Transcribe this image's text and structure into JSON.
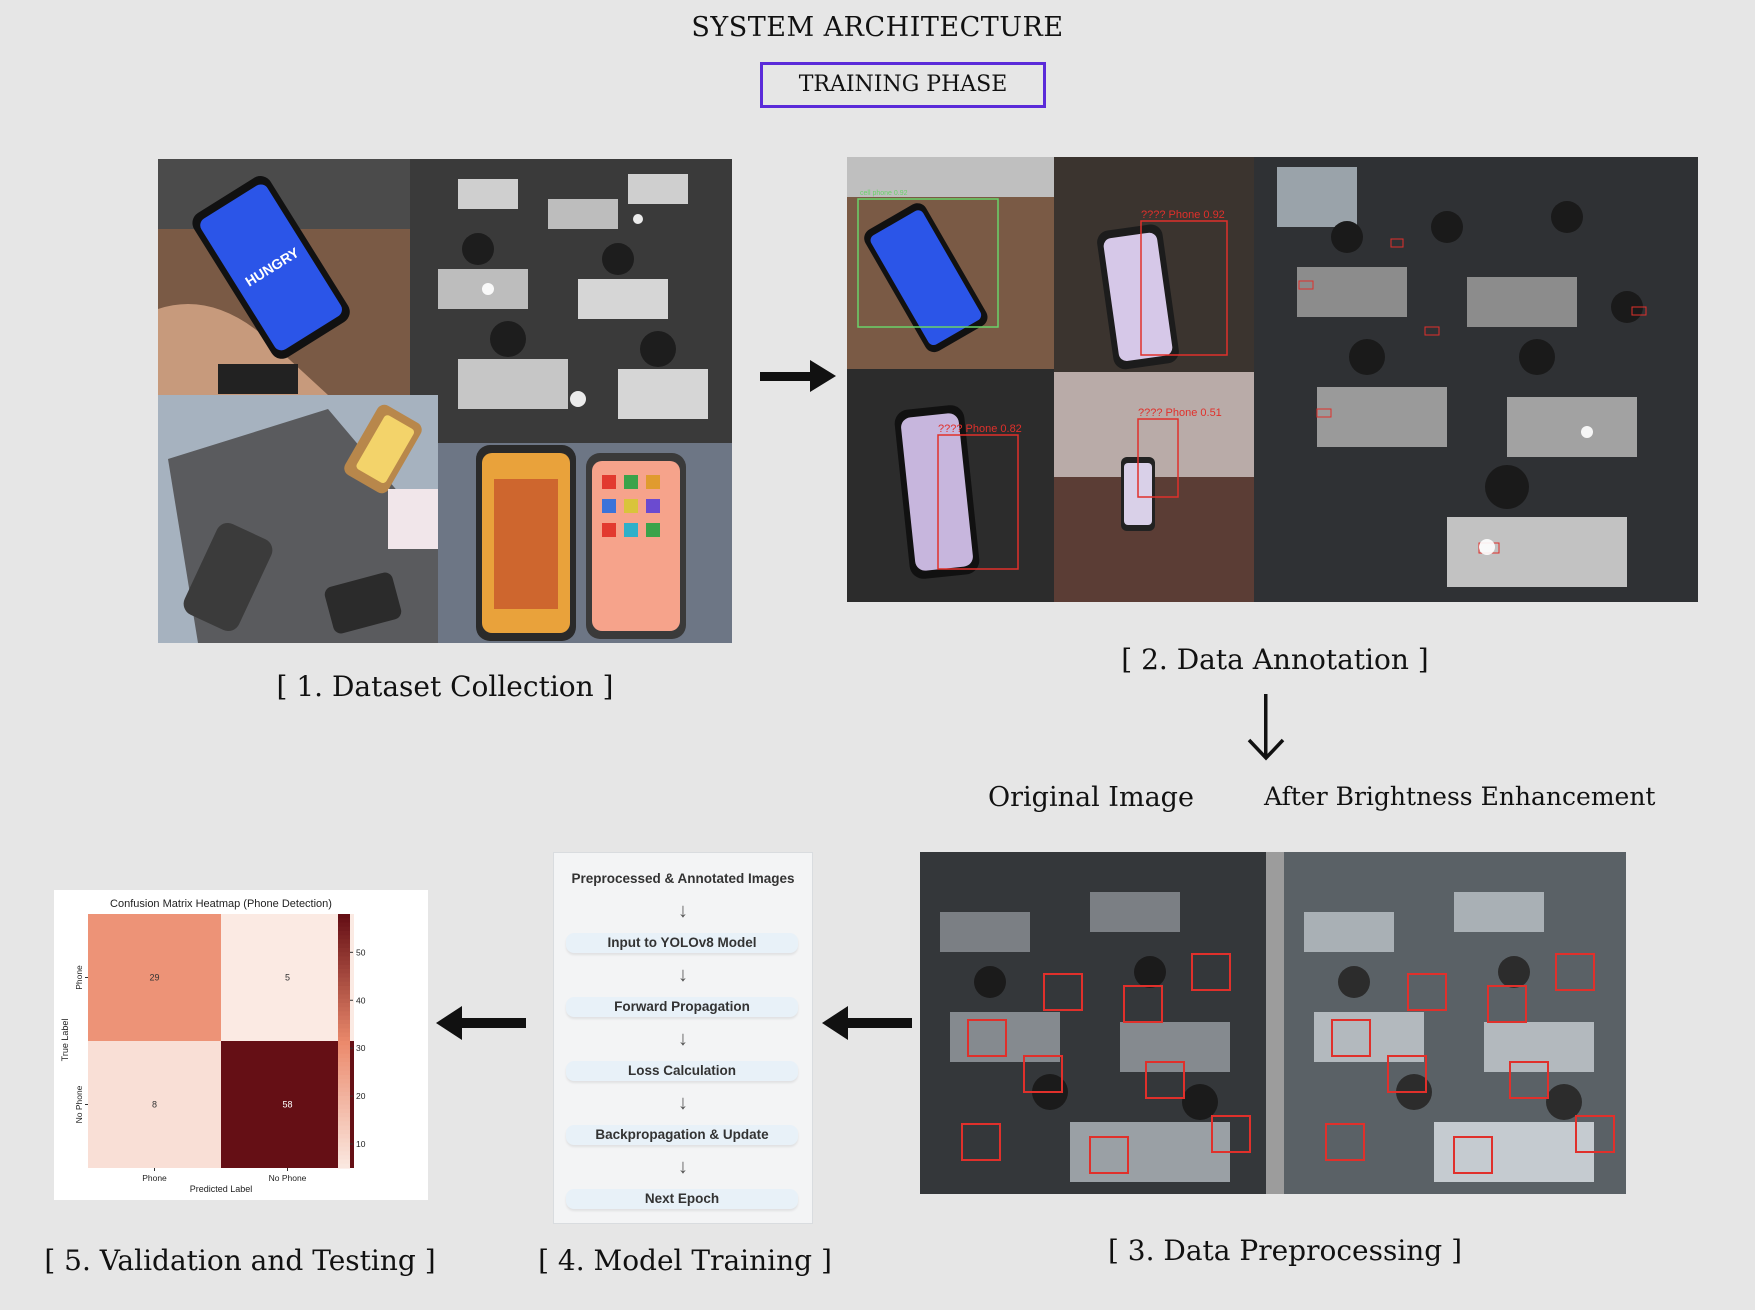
{
  "header": {
    "title": "SYSTEM ARCHITECTURE",
    "phase": "TRAINING PHASE"
  },
  "stages": {
    "dataset_collection": "[ 1. Dataset Collection ]",
    "data_annotation": "[ 2. Data Annotation ]",
    "data_preprocessing": "[ 3. Data Preprocessing ]",
    "model_training": "[ 4. Model Training ]",
    "validation_testing": "[ 5. Validation and Testing ]"
  },
  "annotation_labels": {
    "cell_phone": "cell phone 0.92",
    "phone_a": "???? Phone 0.92",
    "phone_b": "???? Phone 0.82",
    "phone_c": "???? Phone 0.51"
  },
  "dataset_photo": {
    "logo_text": "HUNGRY"
  },
  "preprocessing": {
    "original_label": "Original Image",
    "enhanced_label": "After Brightness Enhancement"
  },
  "training_flow": {
    "header": "Preprocessed & Annotated Images",
    "steps": [
      "Input to YOLOv8 Model",
      "Forward Propagation",
      "Loss Calculation",
      "Backpropagation & Update",
      "Next Epoch"
    ],
    "arrow_glyph": "↓"
  },
  "chart_data": {
    "type": "heatmap",
    "title": "Confusion Matrix Heatmap (Phone Detection)",
    "xlabel": "Predicted Label",
    "ylabel": "True Label",
    "x_categories": [
      "Phone",
      "No Phone"
    ],
    "y_categories": [
      "Phone",
      "No Phone"
    ],
    "values": [
      [
        29,
        5
      ],
      [
        8,
        58
      ]
    ],
    "colorbar_ticks": [
      10,
      20,
      30,
      40,
      50
    ],
    "colorbar_range": [
      5,
      58
    ],
    "colors": {
      "low": "#fbeae3",
      "mid": "#eb8a6c",
      "high": "#650f15"
    }
  },
  "colors": {
    "phase_border": "#5b2bd9",
    "annotation_red": "#e0302b",
    "annotation_green": "#6ad36a"
  }
}
